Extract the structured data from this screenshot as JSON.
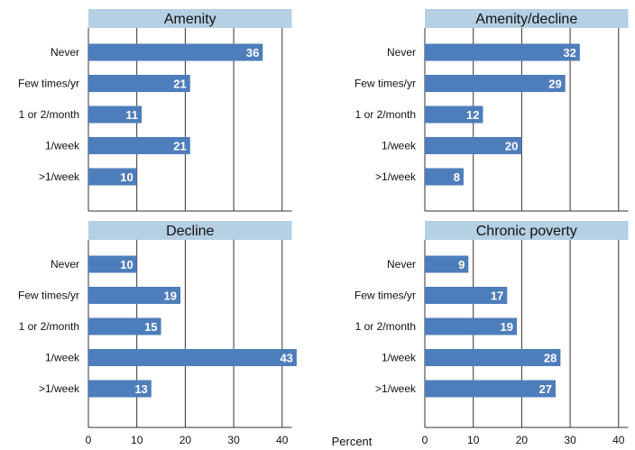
{
  "chart_data": [
    {
      "type": "bar",
      "orientation": "horizontal",
      "title": "Amenity",
      "categories": [
        "Never",
        "Few times/yr",
        "1 or 2/month",
        "1/week",
        ">1/week"
      ],
      "values": [
        36,
        21,
        11,
        21,
        10
      ],
      "xlim": [
        0,
        42
      ],
      "xticks": [
        0,
        10,
        20,
        30,
        40
      ],
      "grid": true
    },
    {
      "type": "bar",
      "orientation": "horizontal",
      "title": "Amenity/decline",
      "categories": [
        "Never",
        "Few times/yr",
        "1 or 2/month",
        "1/week",
        ">1/week"
      ],
      "values": [
        32,
        29,
        12,
        20,
        8
      ],
      "xlim": [
        0,
        42
      ],
      "xticks": [
        0,
        10,
        20,
        30,
        40
      ],
      "grid": true
    },
    {
      "type": "bar",
      "orientation": "horizontal",
      "title": "Decline",
      "categories": [
        "Never",
        "Few times/yr",
        "1 or 2/month",
        "1/week",
        ">1/week"
      ],
      "values": [
        10,
        19,
        15,
        43,
        13
      ],
      "xlim": [
        0,
        42
      ],
      "xticks": [
        0,
        10,
        20,
        30,
        40
      ],
      "grid": true
    },
    {
      "type": "bar",
      "orientation": "horizontal",
      "title": "Chronic poverty",
      "categories": [
        "Never",
        "Few times/yr",
        "1 or 2/month",
        "1/week",
        ">1/week"
      ],
      "values": [
        9,
        17,
        19,
        28,
        27
      ],
      "xlim": [
        0,
        42
      ],
      "xticks": [
        0,
        10,
        20,
        30,
        40
      ],
      "grid": true
    }
  ],
  "xlabel": "Percent",
  "colors": {
    "bar": "#4e7dbb",
    "title_band": "#b5cfe3",
    "value_text": "#ffffff"
  }
}
